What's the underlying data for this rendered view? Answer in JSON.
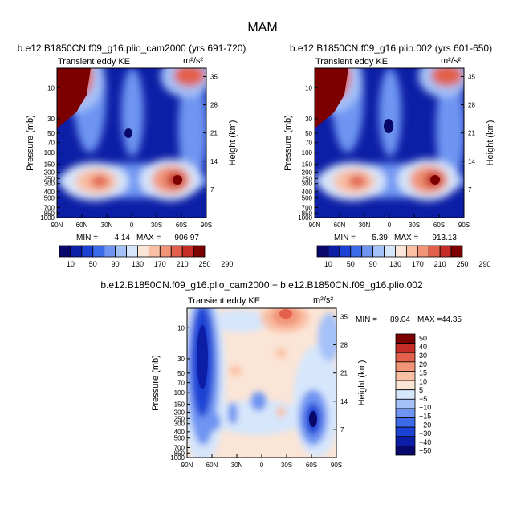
{
  "figure": {
    "title": "MAM"
  },
  "colors": {
    "abs_scale": [
      "#08086b",
      "#0c1ea6",
      "#1c42d4",
      "#3d6ae8",
      "#6e95f2",
      "#a4c1f8",
      "#d6e6fb",
      "#fbe5d6",
      "#f9c0a4",
      "#f29478",
      "#e2604c",
      "#c52c26",
      "#7d0000"
    ],
    "diff_scale": [
      "#08086b",
      "#0c1ea6",
      "#1c42d4",
      "#3d6ae8",
      "#6e95f2",
      "#a4c1f8",
      "#d6e6fb",
      "#fbe5d6",
      "#f9c0a4",
      "#f29478",
      "#e2604c",
      "#c52c26",
      "#7d0000"
    ]
  },
  "chart_data": [
    {
      "type": "heatmap",
      "title": "b.e12.B1850CN.f09_g16.plio_cam2000 (yrs 691-720)",
      "subtitle_left": "Transient eddy KE",
      "units": "m²/s²",
      "xlabel": "",
      "ylabel": "Pressure (mb)",
      "y2label": "Height (km)",
      "xticks": [
        "90N",
        "60N",
        "30N",
        "0",
        "30S",
        "60S",
        "90S"
      ],
      "yticks": [
        "10",
        "30",
        "50",
        "70",
        "100",
        "150",
        "200",
        "250",
        "300",
        "400",
        "500",
        "700",
        "850",
        "1000"
      ],
      "y2ticks": [
        "35",
        "28",
        "21",
        "14",
        "7"
      ],
      "ylim": [
        1000,
        5
      ],
      "min_label": "MIN =",
      "min_value": "4.14",
      "max_label": "MAX =",
      "max_value": "906.97",
      "colorbar_levels": [
        "10",
        "50",
        "90",
        "130",
        "170",
        "210",
        "250",
        "290"
      ],
      "features": [
        {
          "lat": 78,
          "p": 9,
          "value": 300
        },
        {
          "lat": -55,
          "p": 8,
          "value": 240
        },
        {
          "lat": 45,
          "p": 250,
          "value": 230
        },
        {
          "lat": -50,
          "p": 260,
          "value": 300
        },
        {
          "lat": 5,
          "p": 50,
          "value": 5
        }
      ]
    },
    {
      "type": "heatmap",
      "title": "b.e12.B1850CN.f09_g16.plio.002 (yrs 601-650)",
      "subtitle_left": "Transient eddy KE",
      "units": "m²/s²",
      "xlabel": "",
      "ylabel": "Pressure (mb)",
      "y2label": "Height (km)",
      "xticks": [
        "90N",
        "60N",
        "30N",
        "0",
        "30S",
        "60S",
        "90S"
      ],
      "yticks": [
        "10",
        "30",
        "50",
        "70",
        "100",
        "150",
        "200",
        "250",
        "300",
        "400",
        "500",
        "700",
        "850",
        "1000"
      ],
      "y2ticks": [
        "35",
        "28",
        "21",
        "14",
        "7"
      ],
      "ylim": [
        1000,
        5
      ],
      "min_label": "MIN =",
      "min_value": "5.39",
      "max_label": "MAX =",
      "max_value": "913.13",
      "colorbar_levels": [
        "10",
        "50",
        "90",
        "130",
        "170",
        "210",
        "250",
        "290"
      ],
      "features": [
        {
          "lat": 78,
          "p": 9,
          "value": 300
        },
        {
          "lat": -55,
          "p": 8,
          "value": 240
        },
        {
          "lat": 45,
          "p": 250,
          "value": 230
        },
        {
          "lat": -50,
          "p": 260,
          "value": 300
        },
        {
          "lat": 5,
          "p": 40,
          "value": 5
        }
      ]
    },
    {
      "type": "heatmap",
      "title": "b.e12.B1850CN.f09_g16.plio_cam2000 − b.e12.B1850CN.f09_g16.plio.002",
      "subtitle_left": "Transient eddy KE",
      "units": "m²/s²",
      "xlabel": "",
      "ylabel": "Pressure (mb)",
      "y2label": "Height (km)",
      "xticks": [
        "90N",
        "60N",
        "30N",
        "0",
        "30S",
        "60S",
        "90S"
      ],
      "yticks": [
        "10",
        "30",
        "50",
        "70",
        "100",
        "150",
        "200",
        "250",
        "300",
        "400",
        "500",
        "700",
        "850",
        "1000"
      ],
      "y2ticks": [
        "35",
        "28",
        "21",
        "14",
        "7"
      ],
      "ylim": [
        1000,
        5
      ],
      "min_label": "MIN =",
      "min_value": "−89.04",
      "max_label": "MAX =",
      "max_value": "44.35",
      "colorbar_levels": [
        "50",
        "40",
        "30",
        "20",
        "15",
        "10",
        "5",
        "−5",
        "−10",
        "−15",
        "−20",
        "−30",
        "−40",
        "−50"
      ],
      "features": [
        {
          "lat": 75,
          "p": 20,
          "value": -50
        },
        {
          "lat": -60,
          "p": 280,
          "value": -40
        },
        {
          "lat": -25,
          "p": 7,
          "value": 35
        },
        {
          "lat": 15,
          "p": 120,
          "value": -20
        },
        {
          "lat": 50,
          "p": 250,
          "value": -25
        }
      ]
    }
  ]
}
